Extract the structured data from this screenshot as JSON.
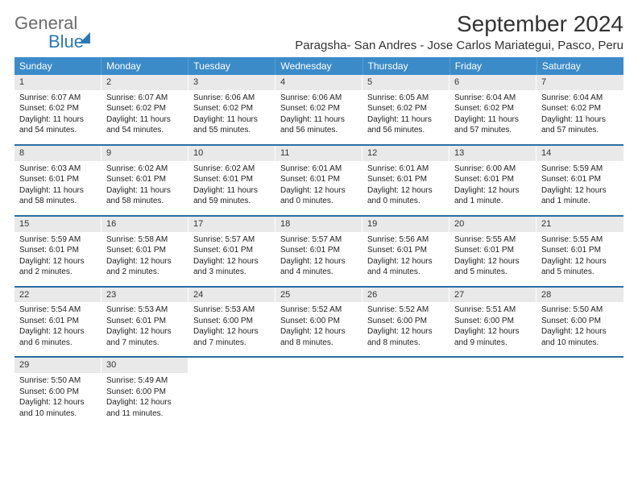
{
  "brand": {
    "name1": "General",
    "name2": "Blue"
  },
  "title": "September 2024",
  "location": "Paragsha- San Andres - Jose Carlos Mariategui, Pasco, Peru",
  "colors": {
    "header_bg": "#3b8bc9",
    "header_text": "#ffffff",
    "daynum_bg": "#e9e9e9",
    "week_border": "#2a6fa3",
    "brand_blue": "#2a7ab8",
    "brand_gray": "#6b6b6b"
  },
  "weekdays": [
    "Sunday",
    "Monday",
    "Tuesday",
    "Wednesday",
    "Thursday",
    "Friday",
    "Saturday"
  ],
  "weeks": [
    [
      {
        "n": "1",
        "sunrise": "Sunrise: 6:07 AM",
        "sunset": "Sunset: 6:02 PM",
        "daylight": "Daylight: 11 hours and 54 minutes."
      },
      {
        "n": "2",
        "sunrise": "Sunrise: 6:07 AM",
        "sunset": "Sunset: 6:02 PM",
        "daylight": "Daylight: 11 hours and 54 minutes."
      },
      {
        "n": "3",
        "sunrise": "Sunrise: 6:06 AM",
        "sunset": "Sunset: 6:02 PM",
        "daylight": "Daylight: 11 hours and 55 minutes."
      },
      {
        "n": "4",
        "sunrise": "Sunrise: 6:06 AM",
        "sunset": "Sunset: 6:02 PM",
        "daylight": "Daylight: 11 hours and 56 minutes."
      },
      {
        "n": "5",
        "sunrise": "Sunrise: 6:05 AM",
        "sunset": "Sunset: 6:02 PM",
        "daylight": "Daylight: 11 hours and 56 minutes."
      },
      {
        "n": "6",
        "sunrise": "Sunrise: 6:04 AM",
        "sunset": "Sunset: 6:02 PM",
        "daylight": "Daylight: 11 hours and 57 minutes."
      },
      {
        "n": "7",
        "sunrise": "Sunrise: 6:04 AM",
        "sunset": "Sunset: 6:02 PM",
        "daylight": "Daylight: 11 hours and 57 minutes."
      }
    ],
    [
      {
        "n": "8",
        "sunrise": "Sunrise: 6:03 AM",
        "sunset": "Sunset: 6:01 PM",
        "daylight": "Daylight: 11 hours and 58 minutes."
      },
      {
        "n": "9",
        "sunrise": "Sunrise: 6:02 AM",
        "sunset": "Sunset: 6:01 PM",
        "daylight": "Daylight: 11 hours and 58 minutes."
      },
      {
        "n": "10",
        "sunrise": "Sunrise: 6:02 AM",
        "sunset": "Sunset: 6:01 PM",
        "daylight": "Daylight: 11 hours and 59 minutes."
      },
      {
        "n": "11",
        "sunrise": "Sunrise: 6:01 AM",
        "sunset": "Sunset: 6:01 PM",
        "daylight": "Daylight: 12 hours and 0 minutes."
      },
      {
        "n": "12",
        "sunrise": "Sunrise: 6:01 AM",
        "sunset": "Sunset: 6:01 PM",
        "daylight": "Daylight: 12 hours and 0 minutes."
      },
      {
        "n": "13",
        "sunrise": "Sunrise: 6:00 AM",
        "sunset": "Sunset: 6:01 PM",
        "daylight": "Daylight: 12 hours and 1 minute."
      },
      {
        "n": "14",
        "sunrise": "Sunrise: 5:59 AM",
        "sunset": "Sunset: 6:01 PM",
        "daylight": "Daylight: 12 hours and 1 minute."
      }
    ],
    [
      {
        "n": "15",
        "sunrise": "Sunrise: 5:59 AM",
        "sunset": "Sunset: 6:01 PM",
        "daylight": "Daylight: 12 hours and 2 minutes."
      },
      {
        "n": "16",
        "sunrise": "Sunrise: 5:58 AM",
        "sunset": "Sunset: 6:01 PM",
        "daylight": "Daylight: 12 hours and 2 minutes."
      },
      {
        "n": "17",
        "sunrise": "Sunrise: 5:57 AM",
        "sunset": "Sunset: 6:01 PM",
        "daylight": "Daylight: 12 hours and 3 minutes."
      },
      {
        "n": "18",
        "sunrise": "Sunrise: 5:57 AM",
        "sunset": "Sunset: 6:01 PM",
        "daylight": "Daylight: 12 hours and 4 minutes."
      },
      {
        "n": "19",
        "sunrise": "Sunrise: 5:56 AM",
        "sunset": "Sunset: 6:01 PM",
        "daylight": "Daylight: 12 hours and 4 minutes."
      },
      {
        "n": "20",
        "sunrise": "Sunrise: 5:55 AM",
        "sunset": "Sunset: 6:01 PM",
        "daylight": "Daylight: 12 hours and 5 minutes."
      },
      {
        "n": "21",
        "sunrise": "Sunrise: 5:55 AM",
        "sunset": "Sunset: 6:01 PM",
        "daylight": "Daylight: 12 hours and 5 minutes."
      }
    ],
    [
      {
        "n": "22",
        "sunrise": "Sunrise: 5:54 AM",
        "sunset": "Sunset: 6:01 PM",
        "daylight": "Daylight: 12 hours and 6 minutes."
      },
      {
        "n": "23",
        "sunrise": "Sunrise: 5:53 AM",
        "sunset": "Sunset: 6:01 PM",
        "daylight": "Daylight: 12 hours and 7 minutes."
      },
      {
        "n": "24",
        "sunrise": "Sunrise: 5:53 AM",
        "sunset": "Sunset: 6:00 PM",
        "daylight": "Daylight: 12 hours and 7 minutes."
      },
      {
        "n": "25",
        "sunrise": "Sunrise: 5:52 AM",
        "sunset": "Sunset: 6:00 PM",
        "daylight": "Daylight: 12 hours and 8 minutes."
      },
      {
        "n": "26",
        "sunrise": "Sunrise: 5:52 AM",
        "sunset": "Sunset: 6:00 PM",
        "daylight": "Daylight: 12 hours and 8 minutes."
      },
      {
        "n": "27",
        "sunrise": "Sunrise: 5:51 AM",
        "sunset": "Sunset: 6:00 PM",
        "daylight": "Daylight: 12 hours and 9 minutes."
      },
      {
        "n": "28",
        "sunrise": "Sunrise: 5:50 AM",
        "sunset": "Sunset: 6:00 PM",
        "daylight": "Daylight: 12 hours and 10 minutes."
      }
    ],
    [
      {
        "n": "29",
        "sunrise": "Sunrise: 5:50 AM",
        "sunset": "Sunset: 6:00 PM",
        "daylight": "Daylight: 12 hours and 10 minutes."
      },
      {
        "n": "30",
        "sunrise": "Sunrise: 5:49 AM",
        "sunset": "Sunset: 6:00 PM",
        "daylight": "Daylight: 12 hours and 11 minutes."
      },
      {
        "empty": true
      },
      {
        "empty": true
      },
      {
        "empty": true
      },
      {
        "empty": true
      },
      {
        "empty": true
      }
    ]
  ]
}
